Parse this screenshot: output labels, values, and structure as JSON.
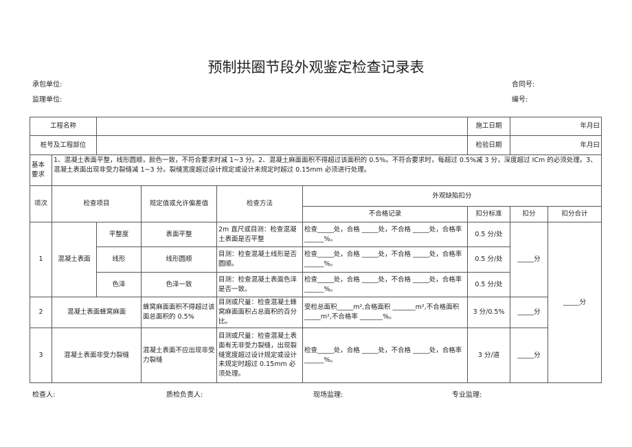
{
  "title": "预制拱圈节段外观鉴定检查记录表",
  "header": {
    "contractor": "承包单位:",
    "contract_no": "合同号:",
    "supervisor": "监理单位:",
    "serial_no": "编号:"
  },
  "info": {
    "project_name": "工程名称",
    "start_date": "施工日期",
    "date_placeholder": "年月曰",
    "pile_part": "桩号及工程部位",
    "inspect_date": "检验日期"
  },
  "requirement": {
    "label": "基本要求",
    "text": "1、混凝土表面平整，线形圆顺，颜色一致，不符合要求时减 1~3 分。2、混凝土麻面面积不得超过该面积的 0.5%。不符合要求时，每超过 0.5%减 3 分，深度超过 ICm 的必须处理。3、混凝土表面出现非受力裂缝减 1~3 分。裂缝宽度超过设计规定或设计未规定时超过 0.15mm 必须进行处理。"
  },
  "columns": {
    "no": "项次",
    "item": "检查项目",
    "spec": "规定值或允许偏差值",
    "method": "检查方法",
    "defect": "外观缺陷扣分",
    "record": "不合格记录",
    "standard": "扣分标准",
    "deduct": "扣分",
    "total": "扣分合计"
  },
  "rows": [
    {
      "no": "1",
      "group": "混凝土表面",
      "sub": "平整度",
      "spec": "表面平整",
      "method": "2m 直尺或目测：检查混凝土表面是否平整",
      "record": "检查_____处，合格 _____处，不合格 _____处，合格率______%。",
      "standard": "0.5 分/处"
    },
    {
      "sub": "线形",
      "spec": "线形圆顺",
      "method": "目测：检查混凝土线形是否圆顺。",
      "record": "检查_____处，合格 _____处，不合格 _____处，合格率______%。",
      "standard": "0.5 分/处"
    },
    {
      "sub": "色泽",
      "spec": "色泽一致",
      "method": "目测：检查混凝土表面色泽是否一致。",
      "record": "检查_____处，合格 _____处，不合格 _____处，合格率______%。",
      "standard": "0.5 分/处"
    },
    {
      "no": "2",
      "item": "混凝土表面蜂窝麻面",
      "spec": "蜂窝麻面面积不得超过该面总面积的 0.5%",
      "method": "目测或尺量：检查混凝土蜂窝麻面面积占总面积的百分比。",
      "record": "受检总面积_____m²,合格面积 _______m²,不合格面积_____m²,不合格率 _______%。",
      "standard": "3 分/0.5%"
    },
    {
      "no": "3",
      "item": "混凝土表面非受力裂缝",
      "spec": "混凝土表面不应出现非受力裂缝",
      "method": "目测或尺量：检查混凝土表面有无非受力裂缝，出现裂缝宽度超过设计规定或设计未规定时超过 0.15mm 必须处理。",
      "record": "检查_____处，合格 _____处，不合格 _____处，合格率______%。",
      "standard": "3 分/道"
    }
  ],
  "score_blank": "_____分",
  "footer": {
    "inspector": "检查人:",
    "qc": "质检负责人:",
    "site_supervisor": "现场监理:",
    "specialist": "专业监理:"
  }
}
